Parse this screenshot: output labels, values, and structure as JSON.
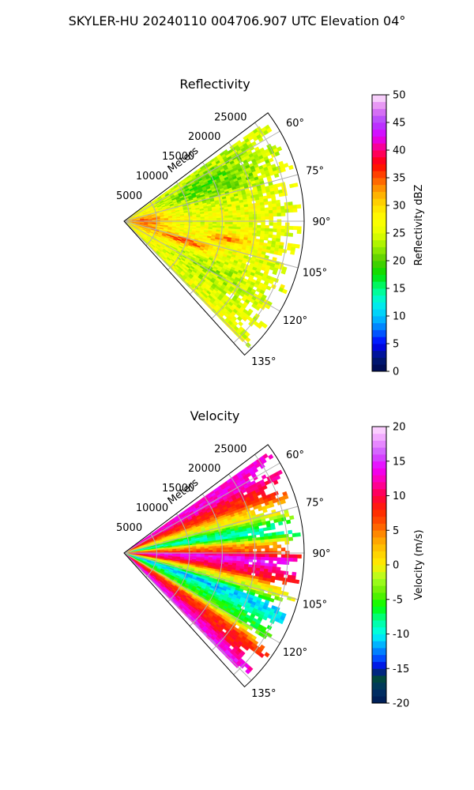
{
  "chart_data": {
    "title": "SKYLER-HU  20240110  004706.907 UTC Elevation 04°",
    "panels": [
      {
        "type": "heatmap",
        "subtype": "polar-sector (PPI)",
        "title": "Reflectivity",
        "radial_label": "Meters",
        "radial_ticks": [
          5000,
          10000,
          15000,
          20000,
          25000
        ],
        "rmax": 27500,
        "azimuth_range_deg": [
          53,
          138
        ],
        "azimuth_ticks_deg": [
          60,
          75,
          90,
          105,
          120,
          135
        ],
        "grid": true,
        "colorbar": {
          "label": "Reflectivity dBZ",
          "range": [
            0,
            50
          ],
          "ticks": [
            0,
            5,
            10,
            15,
            20,
            25,
            30,
            35,
            40,
            45,
            50
          ]
        },
        "field_description": "mostly 22-30 dBZ (yellow/green), higher 32-40 dBZ bands near 95-110 deg and near radar",
        "field_model": {
          "base": 26,
          "features": [
            {
              "az": 92,
              "r": 3000,
              "amp": 8,
              "saz": 25,
              "sr": 4000
            },
            {
              "az": 108,
              "r": 10000,
              "amp": 9,
              "saz": 4,
              "sr": 4500
            },
            {
              "az": 100,
              "r": 16000,
              "amp": 7,
              "saz": 3,
              "sr": 3500
            },
            {
              "az": 66,
              "r": 14000,
              "amp": -6,
              "saz": 10,
              "sr": 9000
            },
            {
              "az": 120,
              "r": 15000,
              "amp": -3,
              "saz": 8,
              "sr": 7000
            }
          ],
          "noise": 3
        }
      },
      {
        "type": "heatmap",
        "subtype": "polar-sector (PPI)",
        "title": "Velocity",
        "radial_label": "Meters",
        "radial_ticks": [
          5000,
          10000,
          15000,
          20000,
          25000
        ],
        "rmax": 27500,
        "azimuth_range_deg": [
          53,
          138
        ],
        "azimuth_ticks_deg": [
          60,
          75,
          90,
          105,
          120,
          135
        ],
        "grid": true,
        "colorbar": {
          "label": "Velocity (m/s)",
          "range": [
            -20,
            20
          ],
          "ticks": [
            -20,
            -15,
            -10,
            -5,
            0,
            5,
            10,
            15,
            20
          ]
        },
        "field_description": "banded radial velocity: negative (green/cyan) near 75-85 deg and 100-115 deg, positive (red/magenta) near 60 deg, 90-95 deg and 120-135 deg",
        "field_model": {
          "bands": [
            {
              "az": 58,
              "v": 13
            },
            {
              "az": 65,
              "v": 8
            },
            {
              "az": 72,
              "v": 0
            },
            {
              "az": 79,
              "v": -9
            },
            {
              "az": 86,
              "v": 5
            },
            {
              "az": 91,
              "v": 14
            },
            {
              "az": 96,
              "v": 10
            },
            {
              "az": 102,
              "v": -1
            },
            {
              "az": 108,
              "v": -11
            },
            {
              "az": 116,
              "v": -6
            },
            {
              "az": 124,
              "v": 8
            },
            {
              "az": 133,
              "v": 14
            }
          ],
          "noise": 1.5
        }
      }
    ]
  }
}
